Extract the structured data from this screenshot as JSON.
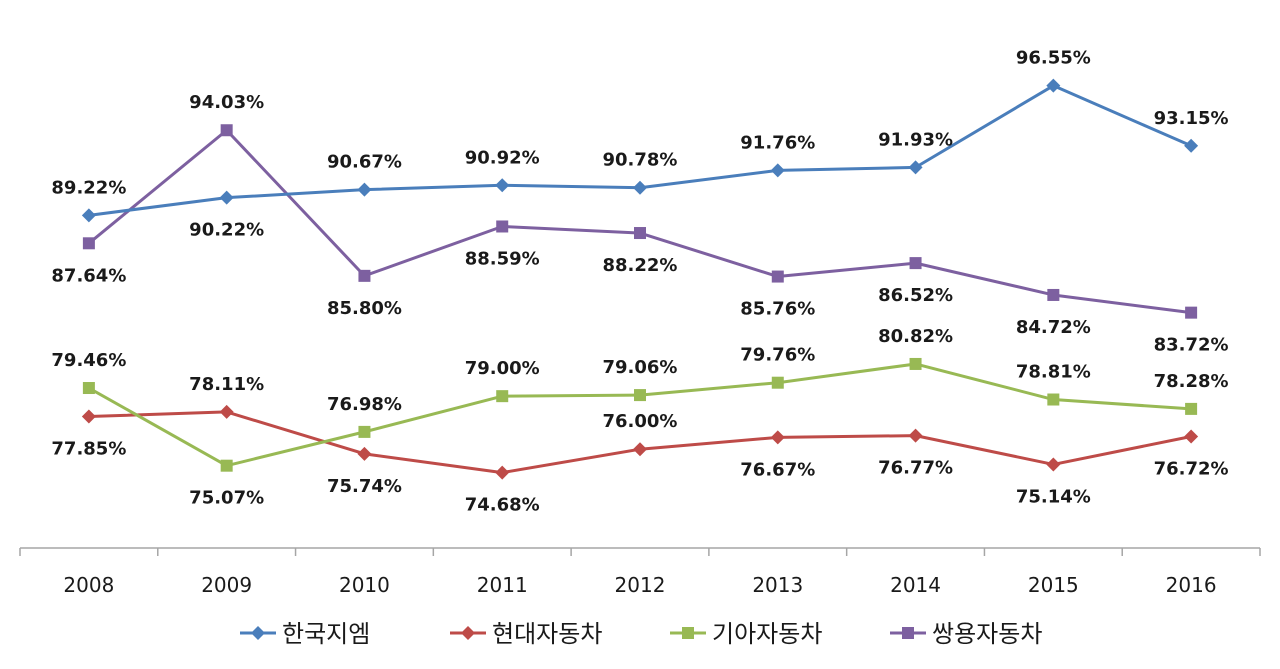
{
  "chart_data": {
    "type": "line",
    "categories": [
      "2008",
      "2009",
      "2010",
      "2011",
      "2012",
      "2013",
      "2014",
      "2015",
      "2016"
    ],
    "value_suffix": "%",
    "series": [
      {
        "name": "한국지엠",
        "color": "#4a7ebb",
        "marker": "diamond",
        "values": [
          89.22,
          90.22,
          90.67,
          90.92,
          90.78,
          91.76,
          91.93,
          96.55,
          93.15
        ],
        "label_positions": [
          "above",
          "below",
          "above",
          "above",
          "above",
          "above",
          "above",
          "above",
          "above"
        ]
      },
      {
        "name": "현대자동차",
        "color": "#be4b48",
        "marker": "diamond",
        "values": [
          77.85,
          78.11,
          75.74,
          74.68,
          76.0,
          76.67,
          76.77,
          75.14,
          76.72
        ],
        "label_positions": [
          "below",
          "above",
          "below",
          "below",
          "above",
          "below",
          "below",
          "below",
          "below"
        ]
      },
      {
        "name": "기아자동차",
        "color": "#98b954",
        "marker": "square",
        "values": [
          79.46,
          75.07,
          76.98,
          79.0,
          79.06,
          79.76,
          80.82,
          78.81,
          78.28
        ],
        "label_positions": [
          "above",
          "below",
          "above",
          "above",
          "above",
          "above",
          "above",
          "above",
          "above"
        ]
      },
      {
        "name": "쌍용자동차",
        "color": "#7d60a0",
        "marker": "square",
        "values": [
          87.64,
          94.03,
          85.8,
          88.59,
          88.22,
          85.76,
          86.52,
          84.72,
          83.72
        ],
        "label_positions": [
          "below",
          "above",
          "below",
          "below",
          "below",
          "below",
          "below",
          "below",
          "below"
        ]
      }
    ],
    "ylim": [
      72,
      98
    ],
    "grid": false,
    "legend": "bottom"
  }
}
